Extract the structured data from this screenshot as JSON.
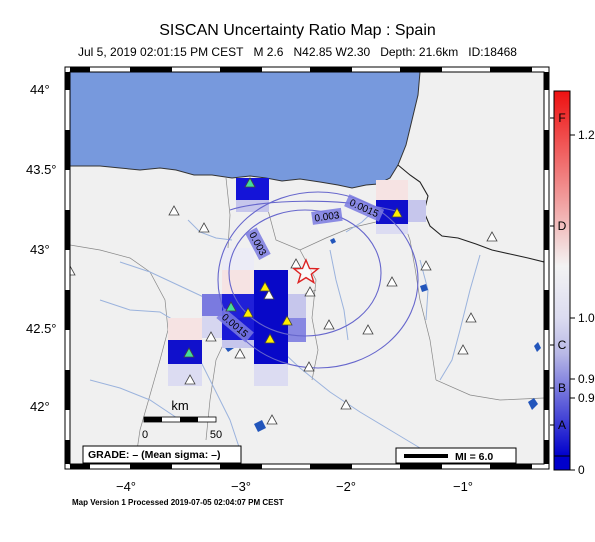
{
  "title": "SISCAN Uncertainty Ratio Map : Spain",
  "event_line": {
    "date": "Jul  5, 2019 02:01:15 PM CEST",
    "magnitude": "M 2.6",
    "location": "N42.85 W2.30",
    "depth": "Depth: 21.6km",
    "id": "ID:18468"
  },
  "footer": "Map Version 1 Processed 2019-07-05 02:04:07 PM CEST",
  "axes": {
    "lat_ticks": [
      "44°",
      "43.5°",
      "43°",
      "42.5°",
      "42°"
    ],
    "lon_ticks": [
      "−4°",
      "−3°",
      "−2°",
      "−1°"
    ]
  },
  "scale_bar": {
    "unit": "km",
    "labels": [
      "0",
      "50"
    ]
  },
  "grade_box": "GRADE: – (Mean sigma: –)",
  "mi_legend": "MI = 6.0",
  "contours": [
    "0.003",
    "0.003",
    "0.0015",
    "0.0015"
  ],
  "colorbar": {
    "right_labels": [
      "1.2",
      "1.0",
      "0.9",
      "0.9",
      "0"
    ],
    "grades": [
      "F",
      "D",
      "C",
      "B",
      "A"
    ],
    "colors": {
      "high": "#ee1111",
      "mid": "#f3f3f3",
      "low": "#0000cc"
    }
  },
  "colors": {
    "sea": "#7799dd",
    "land": "#f0f0f0",
    "rivers": "#9bb3dd",
    "epicenter": "#dd2222",
    "station_used": "#ffee00",
    "station_cyan": "#44dd99",
    "station_unused": "#ffffff"
  },
  "icons": [
    "epicenter-star-icon",
    "station-triangle-icon"
  ]
}
